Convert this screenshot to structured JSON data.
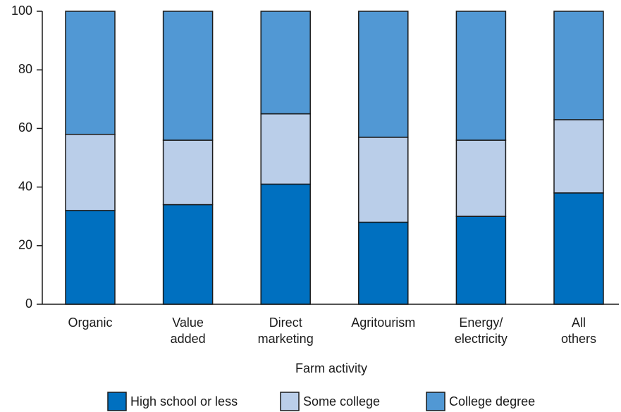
{
  "chart_data": {
    "type": "stacked_bar",
    "categories": [
      "Organic",
      "Value\nadded",
      "Direct\nmarketing",
      "Agritourism",
      "Energy/\nelectricity",
      "All\nothers"
    ],
    "series": [
      {
        "name": "High school or less",
        "color": "#0070c0",
        "values": [
          32,
          34,
          41,
          28,
          30,
          38
        ]
      },
      {
        "name": "Some college",
        "color": "#bacee9",
        "values": [
          26,
          22,
          24,
          29,
          26,
          25
        ]
      },
      {
        "name": "College degree",
        "color": "#5198d4",
        "values": [
          42,
          44,
          35,
          43,
          44,
          37
        ]
      }
    ],
    "xlabel": "Farm activity",
    "ylim": [
      0,
      100
    ],
    "yticks": [
      0,
      20,
      40,
      60,
      80,
      100
    ]
  }
}
